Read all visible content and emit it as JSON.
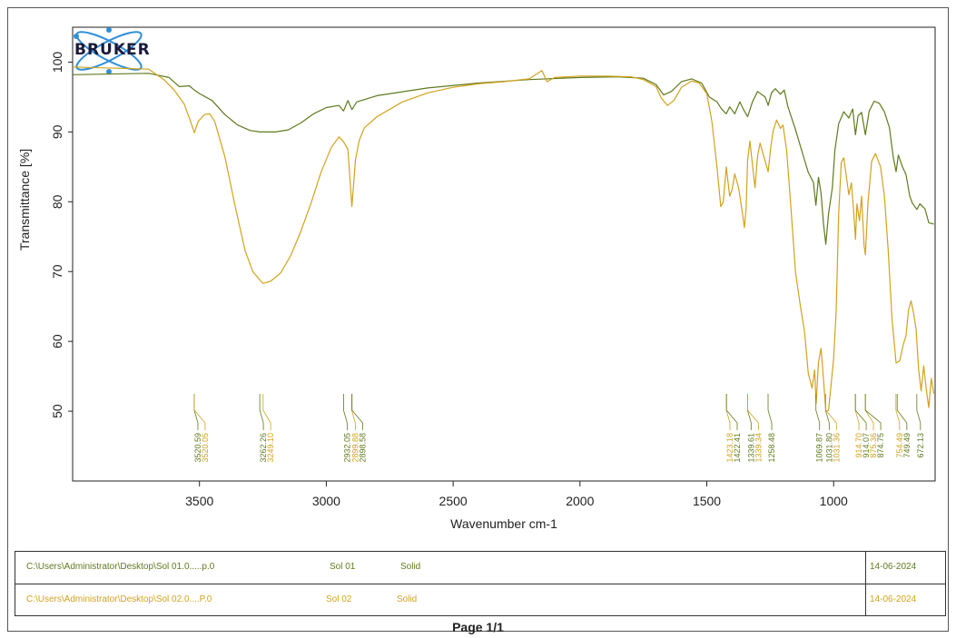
{
  "logo": {
    "text": "BRUKER"
  },
  "colors": {
    "sample1": "#5f7a1e",
    "sample2": "#d2a21c",
    "logo_blue": "#2f8fd8"
  },
  "chart_data": {
    "type": "line",
    "xlabel": "Wavenumber cm-1",
    "ylabel": "Transmittance [%]",
    "xlim": [
      4000,
      600
    ],
    "ylim": [
      40,
      105
    ],
    "x_ticks": [
      3500,
      3000,
      2500,
      2000,
      1500,
      1000
    ],
    "y_ticks": [
      100,
      90,
      80,
      70,
      60,
      50
    ],
    "grid": false,
    "series": [
      {
        "name": "Sol 01",
        "color": "#5f7a1e",
        "points": [
          [
            4000,
            98.2
          ],
          [
            3700,
            98.4
          ],
          [
            3620,
            97.8
          ],
          [
            3580,
            96.5
          ],
          [
            3540,
            96.6
          ],
          [
            3520,
            96.0
          ],
          [
            3500,
            95.5
          ],
          [
            3450,
            94.5
          ],
          [
            3400,
            92.5
          ],
          [
            3350,
            91.0
          ],
          [
            3300,
            90.2
          ],
          [
            3262,
            90.0
          ],
          [
            3200,
            90.0
          ],
          [
            3150,
            90.3
          ],
          [
            3100,
            91.3
          ],
          [
            3050,
            92.6
          ],
          [
            3000,
            93.5
          ],
          [
            2950,
            93.8
          ],
          [
            2932,
            93.0
          ],
          [
            2915,
            94.5
          ],
          [
            2899,
            93.2
          ],
          [
            2880,
            94.3
          ],
          [
            2800,
            95.2
          ],
          [
            2600,
            96.3
          ],
          [
            2400,
            97.0
          ],
          [
            2200,
            97.5
          ],
          [
            2000,
            97.8
          ],
          [
            1850,
            97.9
          ],
          [
            1750,
            97.7
          ],
          [
            1700,
            96.8
          ],
          [
            1670,
            95.3
          ],
          [
            1640,
            95.8
          ],
          [
            1600,
            97.2
          ],
          [
            1560,
            97.6
          ],
          [
            1520,
            97.0
          ],
          [
            1490,
            95.0
          ],
          [
            1460,
            94.3
          ],
          [
            1440,
            93.2
          ],
          [
            1423,
            92.6
          ],
          [
            1410,
            93.6
          ],
          [
            1390,
            92.6
          ],
          [
            1370,
            94.3
          ],
          [
            1355,
            93.2
          ],
          [
            1339,
            92.2
          ],
          [
            1320,
            94.3
          ],
          [
            1300,
            95.8
          ],
          [
            1270,
            95.0
          ],
          [
            1258,
            93.8
          ],
          [
            1245,
            95.6
          ],
          [
            1230,
            96.2
          ],
          [
            1210,
            95.4
          ],
          [
            1195,
            96.0
          ],
          [
            1180,
            93.6
          ],
          [
            1150,
            90.3
          ],
          [
            1120,
            86.6
          ],
          [
            1100,
            84.2
          ],
          [
            1080,
            82.8
          ],
          [
            1070,
            79.5
          ],
          [
            1060,
            83.5
          ],
          [
            1050,
            81.3
          ],
          [
            1040,
            76.8
          ],
          [
            1031,
            73.9
          ],
          [
            1020,
            78.3
          ],
          [
            1005,
            82.0
          ],
          [
            995,
            87.4
          ],
          [
            980,
            91.2
          ],
          [
            960,
            92.9
          ],
          [
            940,
            92.0
          ],
          [
            925,
            93.3
          ],
          [
            914,
            89.6
          ],
          [
            904,
            92.3
          ],
          [
            890,
            92.8
          ],
          [
            875,
            89.6
          ],
          [
            860,
            93.0
          ],
          [
            840,
            94.4
          ],
          [
            820,
            94.1
          ],
          [
            800,
            92.9
          ],
          [
            780,
            90.6
          ],
          [
            765,
            86.4
          ],
          [
            754,
            84.3
          ],
          [
            745,
            86.7
          ],
          [
            730,
            85.1
          ],
          [
            715,
            83.9
          ],
          [
            700,
            80.8
          ],
          [
            690,
            79.8
          ],
          [
            672,
            78.9
          ],
          [
            660,
            79.7
          ],
          [
            640,
            79.0
          ],
          [
            625,
            77.0
          ],
          [
            605,
            76.8
          ]
        ]
      },
      {
        "name": "Sol 02",
        "color": "#d2a21c",
        "points": [
          [
            4000,
            99.3
          ],
          [
            3700,
            99.0
          ],
          [
            3640,
            97.5
          ],
          [
            3600,
            96.0
          ],
          [
            3560,
            94.0
          ],
          [
            3535,
            91.5
          ],
          [
            3520,
            89.9
          ],
          [
            3505,
            91.5
          ],
          [
            3480,
            92.5
          ],
          [
            3460,
            92.6
          ],
          [
            3440,
            91.5
          ],
          [
            3400,
            86.5
          ],
          [
            3360,
            79.5
          ],
          [
            3320,
            73.0
          ],
          [
            3290,
            70.0
          ],
          [
            3262,
            68.8
          ],
          [
            3249,
            68.3
          ],
          [
            3220,
            68.6
          ],
          [
            3180,
            69.8
          ],
          [
            3140,
            72.3
          ],
          [
            3100,
            75.8
          ],
          [
            3060,
            79.8
          ],
          [
            3020,
            84.3
          ],
          [
            2980,
            87.8
          ],
          [
            2950,
            89.3
          ],
          [
            2932,
            88.6
          ],
          [
            2915,
            87.5
          ],
          [
            2899,
            79.3
          ],
          [
            2885,
            86.0
          ],
          [
            2870,
            88.8
          ],
          [
            2850,
            90.6
          ],
          [
            2800,
            92.2
          ],
          [
            2700,
            94.3
          ],
          [
            2600,
            95.6
          ],
          [
            2500,
            96.4
          ],
          [
            2400,
            96.9
          ],
          [
            2300,
            97.2
          ],
          [
            2200,
            97.6
          ],
          [
            2150,
            98.8
          ],
          [
            2130,
            97.2
          ],
          [
            2100,
            97.8
          ],
          [
            2050,
            97.9
          ],
          [
            2000,
            98.0
          ],
          [
            1900,
            98.0
          ],
          [
            1800,
            97.9
          ],
          [
            1750,
            97.5
          ],
          [
            1700,
            96.5
          ],
          [
            1680,
            94.9
          ],
          [
            1655,
            93.8
          ],
          [
            1630,
            94.5
          ],
          [
            1600,
            96.4
          ],
          [
            1560,
            97.3
          ],
          [
            1530,
            97.0
          ],
          [
            1500,
            95.5
          ],
          [
            1480,
            91.5
          ],
          [
            1460,
            85.0
          ],
          [
            1445,
            79.3
          ],
          [
            1435,
            80.0
          ],
          [
            1423,
            85.0
          ],
          [
            1410,
            80.8
          ],
          [
            1400,
            81.8
          ],
          [
            1390,
            84.0
          ],
          [
            1375,
            82.0
          ],
          [
            1360,
            78.5
          ],
          [
            1352,
            76.3
          ],
          [
            1345,
            79.0
          ],
          [
            1339,
            86.0
          ],
          [
            1330,
            88.7
          ],
          [
            1320,
            85.3
          ],
          [
            1310,
            82.0
          ],
          [
            1300,
            86.5
          ],
          [
            1290,
            88.4
          ],
          [
            1270,
            85.8
          ],
          [
            1258,
            84.3
          ],
          [
            1248,
            87.8
          ],
          [
            1238,
            90.2
          ],
          [
            1225,
            91.7
          ],
          [
            1210,
            90.5
          ],
          [
            1200,
            91.0
          ],
          [
            1185,
            87.3
          ],
          [
            1170,
            80.0
          ],
          [
            1150,
            69.8
          ],
          [
            1130,
            64.8
          ],
          [
            1115,
            61.5
          ],
          [
            1100,
            55.4
          ],
          [
            1085,
            53.3
          ],
          [
            1075,
            55.9
          ],
          [
            1069,
            51.1
          ],
          [
            1060,
            57.0
          ],
          [
            1050,
            59.0
          ],
          [
            1040,
            54.5
          ],
          [
            1031,
            50.0
          ],
          [
            1020,
            50.1
          ],
          [
            1010,
            53.8
          ],
          [
            1000,
            57.5
          ],
          [
            990,
            64.3
          ],
          [
            980,
            78.4
          ],
          [
            970,
            85.6
          ],
          [
            960,
            86.3
          ],
          [
            940,
            81.0
          ],
          [
            930,
            82.7
          ],
          [
            920,
            78.0
          ],
          [
            914,
            74.6
          ],
          [
            908,
            79.7
          ],
          [
            898,
            77.3
          ],
          [
            890,
            80.8
          ],
          [
            880,
            73.7
          ],
          [
            875,
            72.4
          ],
          [
            865,
            79.8
          ],
          [
            850,
            85.8
          ],
          [
            835,
            86.9
          ],
          [
            815,
            85.0
          ],
          [
            800,
            80.9
          ],
          [
            785,
            73.1
          ],
          [
            770,
            63.3
          ],
          [
            754,
            56.9
          ],
          [
            740,
            57.2
          ],
          [
            725,
            59.6
          ],
          [
            715,
            60.8
          ],
          [
            705,
            64.5
          ],
          [
            695,
            65.8
          ],
          [
            685,
            64.0
          ],
          [
            675,
            61.8
          ],
          [
            665,
            56.0
          ],
          [
            655,
            52.9
          ],
          [
            645,
            56.5
          ],
          [
            635,
            53.2
          ],
          [
            625,
            50.5
          ],
          [
            615,
            54.7
          ],
          [
            605,
            52.5
          ]
        ]
      }
    ],
    "peak_labels": [
      {
        "wavenumber": 3520.59,
        "label": "3520.59",
        "series": "Sol 01"
      },
      {
        "wavenumber": 3520.05,
        "label": "3520.05",
        "series": "Sol 02"
      },
      {
        "wavenumber": 3262.26,
        "label": "3262.26",
        "series": "Sol 01"
      },
      {
        "wavenumber": 3249.1,
        "label": "3249.10",
        "series": "Sol 02"
      },
      {
        "wavenumber": 2932.05,
        "label": "2932.05",
        "series": "Sol 01"
      },
      {
        "wavenumber": 2899.88,
        "label": "2899.88",
        "series": "Sol 02"
      },
      {
        "wavenumber": 2898.58,
        "label": "2898.58",
        "series": "Sol 01"
      },
      {
        "wavenumber": 1423.18,
        "label": "1423.18",
        "series": "Sol 02"
      },
      {
        "wavenumber": 1422.41,
        "label": "1422.41",
        "series": "Sol 01"
      },
      {
        "wavenumber": 1339.61,
        "label": "1339.61",
        "series": "Sol 01"
      },
      {
        "wavenumber": 1339.34,
        "label": "1339.34",
        "series": "Sol 02"
      },
      {
        "wavenumber": 1258.48,
        "label": "1258.48",
        "series": "Sol 01"
      },
      {
        "wavenumber": 1069.87,
        "label": "1069.87",
        "series": "Sol 01"
      },
      {
        "wavenumber": 1031.8,
        "label": "1031.80",
        "series": "Sol 01"
      },
      {
        "wavenumber": 1031.36,
        "label": "1031.36",
        "series": "Sol 02"
      },
      {
        "wavenumber": 914.7,
        "label": "914.70",
        "series": "Sol 02"
      },
      {
        "wavenumber": 914.07,
        "label": "914.07",
        "series": "Sol 01"
      },
      {
        "wavenumber": 875.36,
        "label": "875.36",
        "series": "Sol 02"
      },
      {
        "wavenumber": 874.75,
        "label": "874.75",
        "series": "Sol 01"
      },
      {
        "wavenumber": 754.49,
        "label": "754.49",
        "series": "Sol 02"
      },
      {
        "wavenumber": 749.49,
        "label": "749.49",
        "series": "Sol 01"
      },
      {
        "wavenumber": 672.13,
        "label": "672.13",
        "series": "Sol 01"
      }
    ]
  },
  "legend": [
    {
      "path": "C:\\Users\\Administrator\\Desktop\\Sol 01.0.....p.0",
      "sample": "Sol 01",
      "form": "Solid",
      "date": "14-06-2024",
      "color": "#5f7a1e"
    },
    {
      "path": "C:\\Users\\Administrator\\Desktop\\Sol 02.0....P.0",
      "sample": "Sol 02",
      "form": "Solid",
      "date": "14-06-2024",
      "color": "#d2a21c"
    }
  ],
  "footer": {
    "page": "Page 1/1"
  }
}
